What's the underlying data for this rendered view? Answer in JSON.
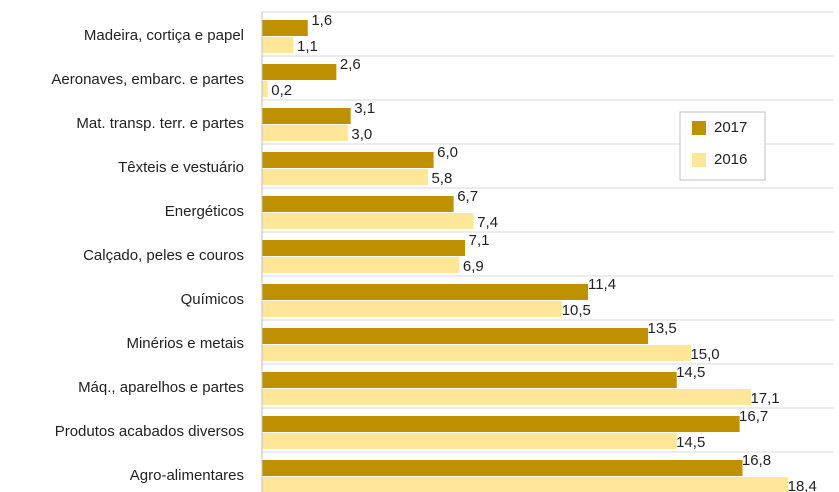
{
  "chart_data": {
    "type": "bar",
    "orientation": "horizontal",
    "categories": [
      "Madeira, cortiça e papel",
      "Aeronaves, embarc. e partes",
      "Mat. transp. terr. e partes",
      "Têxteis e vestuário",
      "Energéticos",
      "Calçado, peles e couros",
      "Químicos",
      "Minérios e metais",
      "Máq., aparelhos e partes",
      "Produtos acabados diversos",
      "Agro-alimentares"
    ],
    "series": [
      {
        "name": "2017",
        "color": "#bf9000",
        "values": [
          1.6,
          2.6,
          3.1,
          6.0,
          6.7,
          7.1,
          11.4,
          13.5,
          14.5,
          16.7,
          16.8
        ],
        "value_labels": [
          "1,6",
          "2,6",
          "3,1",
          "6,0",
          "6,7",
          "7,1",
          "11,4",
          "13,5",
          "14,5",
          "16,7",
          "16,8"
        ]
      },
      {
        "name": "2016",
        "color": "#ffe699",
        "values": [
          1.1,
          0.2,
          3.0,
          5.8,
          7.4,
          6.9,
          10.5,
          15.0,
          17.1,
          14.5,
          18.4
        ],
        "value_labels": [
          "1,1",
          "0,2",
          "3,0",
          "5,8",
          "7,4",
          "6,9",
          "10,5",
          "15,0",
          "17,1",
          "14,5",
          "18,4"
        ]
      }
    ],
    "xlim": [
      0,
      20
    ],
    "legend": "right"
  }
}
